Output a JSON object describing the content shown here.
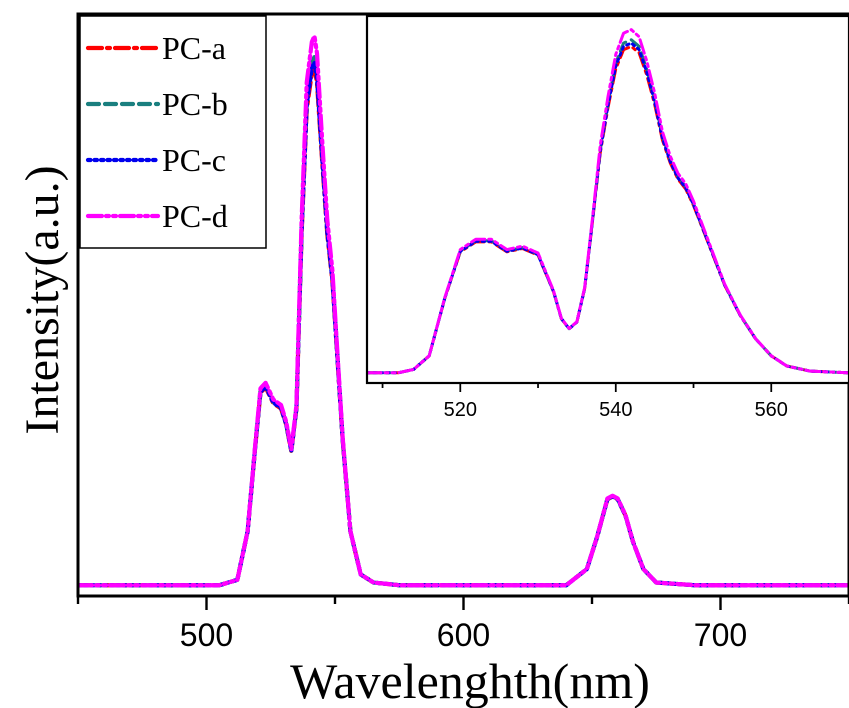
{
  "chart_data": [
    {
      "type": "line",
      "title": "",
      "xlabel": "Wavelenghth(nm)",
      "ylabel": "Intensity(a.u.)",
      "xlim": [
        450,
        750
      ],
      "ylim": [
        -0.02,
        1.06
      ],
      "xticks": [
        "500",
        "600",
        "700"
      ],
      "y_tick_labels_shown": false,
      "legend": {
        "position": "top-left",
        "entries": [
          "PC-a",
          "PC-b",
          "PC-c",
          "PC-d"
        ]
      },
      "series": [
        {
          "name": "PC-a",
          "color": "#ff0000",
          "dash": "dash-dot",
          "peak_scale": 0.98
        },
        {
          "name": "PC-b",
          "color": "#1a7f7f",
          "dash": "dash",
          "peak_scale": 1.0
        },
        {
          "name": "PC-c",
          "color": "#0000ee",
          "dash": "dot",
          "peak_scale": 0.99
        },
        {
          "name": "PC-d",
          "color": "#ff00ff",
          "dash": "dash-dot-dot",
          "peak_scale": 1.04
        }
      ],
      "profile": {
        "x": [
          450,
          505,
          512,
          516,
          519,
          521,
          523,
          526,
          529,
          531,
          533,
          535,
          537,
          539,
          541,
          542,
          543,
          545,
          547,
          549,
          551,
          553,
          556,
          560,
          565,
          575,
          600,
          640,
          648,
          652,
          656,
          658,
          660,
          663,
          666,
          670,
          675,
          690,
          750
        ],
        "y": [
          0,
          0,
          0.01,
          0.1,
          0.26,
          0.36,
          0.37,
          0.34,
          0.33,
          0.3,
          0.25,
          0.33,
          0.66,
          0.9,
          0.97,
          0.98,
          0.95,
          0.8,
          0.66,
          0.57,
          0.42,
          0.27,
          0.1,
          0.02,
          0.005,
          0,
          0,
          0,
          0.03,
          0.09,
          0.16,
          0.165,
          0.16,
          0.13,
          0.08,
          0.03,
          0.005,
          0,
          0
        ]
      }
    },
    {
      "type": "line",
      "title": "",
      "xlabel": "",
      "ylabel": "",
      "xlim": [
        508,
        570
      ],
      "ylim": [
        -0.03,
        1.05
      ],
      "xticks": [
        "520",
        "540",
        "560"
      ],
      "series": [
        {
          "name": "PC-a",
          "color": "#ff0000",
          "dash": "dash-dot",
          "peak_scale": 0.97
        },
        {
          "name": "PC-b",
          "color": "#1a7f7f",
          "dash": "dash",
          "peak_scale": 0.99
        },
        {
          "name": "PC-c",
          "color": "#0000ee",
          "dash": "dot",
          "peak_scale": 0.98
        },
        {
          "name": "PC-d",
          "color": "#ff00ff",
          "dash": "dash-dot-dot",
          "peak_scale": 1.02
        }
      ],
      "profile": {
        "x": [
          508,
          512,
          514,
          516,
          518,
          520,
          522,
          524,
          526,
          528,
          530,
          532,
          533,
          534,
          535,
          536,
          537,
          538,
          539,
          540,
          541,
          542,
          543,
          544,
          545,
          546,
          547,
          548,
          549,
          550,
          551,
          552,
          554,
          556,
          558,
          560,
          562,
          565,
          570
        ],
        "y": [
          0,
          0,
          0.01,
          0.05,
          0.22,
          0.36,
          0.39,
          0.39,
          0.36,
          0.37,
          0.35,
          0.24,
          0.16,
          0.13,
          0.15,
          0.25,
          0.45,
          0.66,
          0.8,
          0.92,
          0.98,
          0.99,
          0.97,
          0.9,
          0.81,
          0.7,
          0.63,
          0.58,
          0.55,
          0.5,
          0.44,
          0.38,
          0.26,
          0.17,
          0.1,
          0.05,
          0.02,
          0.005,
          0
        ]
      }
    }
  ]
}
